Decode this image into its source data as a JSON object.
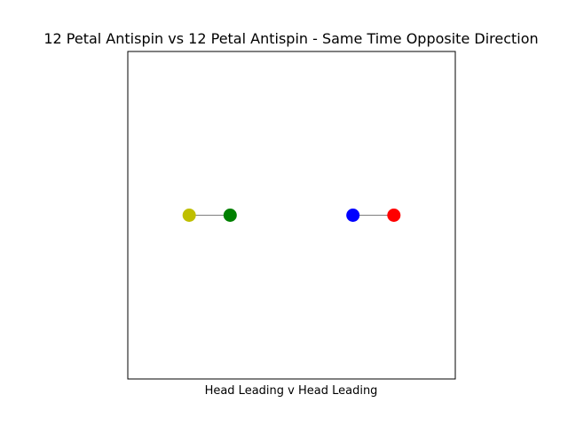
{
  "chart_data": {
    "type": "scatter",
    "title": "12 Petal Antispin vs 12 Petal Antispin - Same Time Opposite Direction",
    "xlabel": "Head Leading v Head Leading",
    "ylabel": "",
    "xlim": [
      -4,
      4
    ],
    "ylim": [
      -4,
      4
    ],
    "grid": false,
    "ticks_visible": false,
    "points": [
      {
        "x": -2.5,
        "y": 0,
        "color": "#bfbf00"
      },
      {
        "x": -1.5,
        "y": 0,
        "color": "#008000"
      },
      {
        "x": 1.5,
        "y": 0,
        "color": "#0000ff"
      },
      {
        "x": 2.5,
        "y": 0,
        "color": "#ff0000"
      }
    ],
    "segments": [
      {
        "from": [
          -2.5,
          0
        ],
        "to": [
          -1.5,
          0
        ],
        "color": "#000000"
      },
      {
        "from": [
          1.5,
          0
        ],
        "to": [
          2.5,
          0
        ],
        "color": "#000000"
      }
    ]
  }
}
